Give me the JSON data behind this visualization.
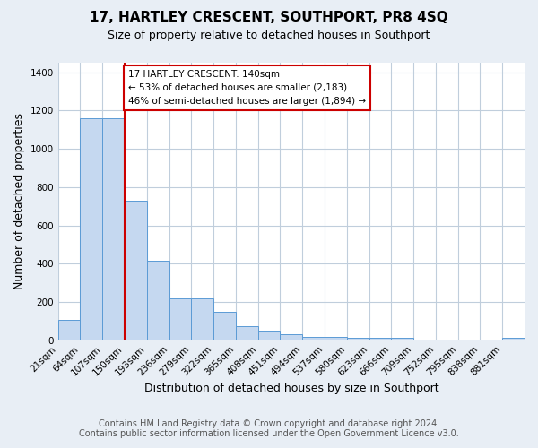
{
  "title": "17, HARTLEY CRESCENT, SOUTHPORT, PR8 4SQ",
  "subtitle": "Size of property relative to detached houses in Southport",
  "xlabel": "Distribution of detached houses by size in Southport",
  "ylabel": "Number of detached properties",
  "bar_labels": [
    "21sqm",
    "64sqm",
    "107sqm",
    "150sqm",
    "193sqm",
    "236sqm",
    "279sqm",
    "322sqm",
    "365sqm",
    "408sqm",
    "451sqm",
    "494sqm",
    "537sqm",
    "580sqm",
    "623sqm",
    "666sqm",
    "709sqm",
    "752sqm",
    "795sqm",
    "838sqm",
    "881sqm"
  ],
  "bar_values": [
    108,
    1162,
    1162,
    730,
    415,
    220,
    220,
    148,
    75,
    50,
    30,
    18,
    18,
    12,
    12,
    12,
    0,
    0,
    0,
    0,
    12
  ],
  "bar_color": "#c5d8f0",
  "bar_edgecolor": "#5b9bd5",
  "vline_pos": 3,
  "vline_color": "#cc0000",
  "annotation_text": "17 HARTLEY CRESCENT: 140sqm\n← 53% of detached houses are smaller (2,183)\n46% of semi-detached houses are larger (1,894) →",
  "annotation_box_edgecolor": "#cc0000",
  "annotation_box_facecolor": "#ffffff",
  "ylim": [
    0,
    1450
  ],
  "yticks": [
    0,
    200,
    400,
    600,
    800,
    1000,
    1200,
    1400
  ],
  "footer1": "Contains HM Land Registry data © Crown copyright and database right 2024.",
  "footer2": "Contains public sector information licensed under the Open Government Licence v3.0.",
  "bg_color": "#e8eef5",
  "plot_bg_color": "#ffffff",
  "grid_color": "#c0cedc",
  "title_fontsize": 11,
  "subtitle_fontsize": 9,
  "axis_label_fontsize": 9,
  "tick_fontsize": 7.5,
  "footer_fontsize": 7,
  "ann_fontsize": 7.5
}
